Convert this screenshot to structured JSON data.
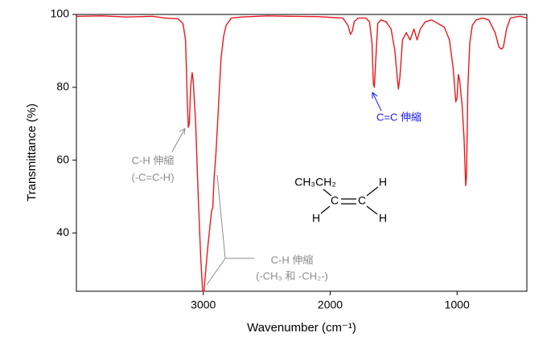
{
  "chart_data": {
    "type": "line",
    "xlabel": "Wavenumber (cm⁻¹)",
    "ylabel": "Transmittance (%)",
    "xlim": [
      4000,
      450
    ],
    "ylim": [
      24,
      100
    ],
    "xticks": [
      3000,
      2000,
      1000
    ],
    "yticks": [
      40,
      60,
      80,
      100
    ],
    "series": [
      {
        "color": "#e8191c",
        "x": [
          4000,
          3800,
          3600,
          3400,
          3300,
          3200,
          3160,
          3140,
          3125,
          3118,
          3110,
          3100,
          3088,
          3080,
          3060,
          3040,
          3020,
          3005,
          2995,
          2980,
          2965,
          2950,
          2935,
          2925,
          2915,
          2900,
          2880,
          2860,
          2840,
          2820,
          2780,
          2700,
          2500,
          2300,
          2100,
          2000,
          1900,
          1860,
          1840,
          1825,
          1810,
          1780,
          1720,
          1690,
          1670,
          1660,
          1652,
          1640,
          1625,
          1600,
          1560,
          1520,
          1490,
          1470,
          1462,
          1450,
          1430,
          1400,
          1370,
          1340,
          1315,
          1290,
          1250,
          1200,
          1150,
          1100,
          1060,
          1030,
          1010,
          1000,
          990,
          980,
          960,
          945,
          932,
          925,
          915,
          900,
          880,
          850,
          800,
          750,
          700,
          670,
          650,
          635,
          610,
          580,
          540,
          500,
          450
        ],
        "values": [
          99.5,
          99.6,
          99.3,
          99.5,
          99.0,
          98.8,
          97.5,
          93,
          75,
          69,
          70,
          80,
          84,
          82,
          70,
          50,
          33,
          24,
          24,
          30,
          36,
          41,
          46,
          47,
          55,
          62,
          75,
          88,
          94,
          97,
          99,
          99.3,
          99.6,
          99.5,
          99.4,
          99.2,
          99,
          97,
          94.5,
          95.5,
          98,
          99,
          99,
          98,
          92,
          81,
          80,
          88,
          97.5,
          98.5,
          98,
          96,
          90,
          82,
          79.5,
          83,
          93,
          95,
          93,
          96,
          93,
          96,
          98,
          98.5,
          97.5,
          96.5,
          93,
          85,
          76,
          77,
          83.5,
          82,
          75,
          66,
          53,
          56,
          80,
          92,
          97,
          98.5,
          99,
          98.5,
          95,
          91,
          90.5,
          91,
          96,
          99,
          99.3,
          99.5,
          99
        ]
      }
    ],
    "annotations": [
      "C-H 伸縮",
      "(-C=C-H)",
      "C-H 伸縮",
      "(-CH₃ 和 -CH₂-)",
      "C=C 伸縮"
    ],
    "molecule": [
      "CH₃CH₂",
      "C",
      "C",
      "H",
      "H",
      "H"
    ]
  }
}
